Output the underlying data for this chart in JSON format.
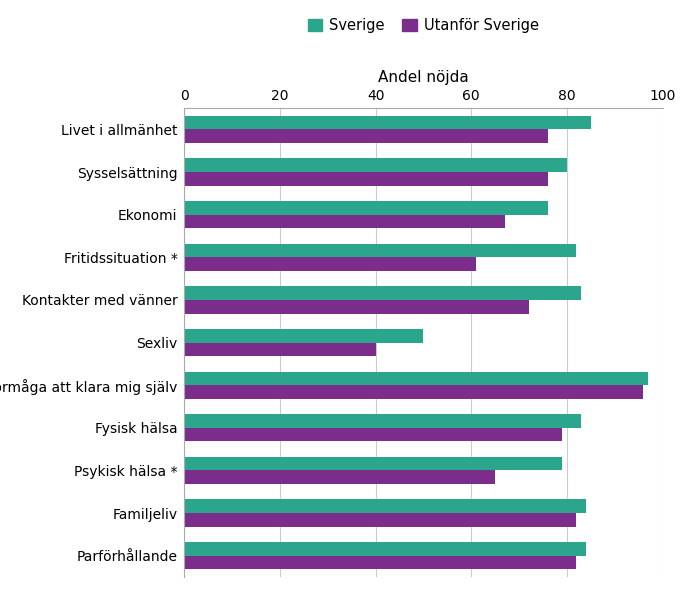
{
  "categories": [
    "Livet i allmänhet",
    "Sysselsättning",
    "Ekonomi",
    "Fritidssituation *",
    "Kontakter med vänner",
    "Sexliv",
    "Förmåga att klara mig själv",
    "Fysisk hälsa",
    "Psykisk hälsa *",
    "Familjeliv",
    "Parförhållande"
  ],
  "sverige": [
    85,
    80,
    76,
    82,
    83,
    50,
    97,
    83,
    79,
    84,
    84
  ],
  "utanfor_sverige": [
    76,
    76,
    67,
    61,
    72,
    40,
    96,
    79,
    65,
    82,
    82
  ],
  "color_sverige": "#2ca58d",
  "color_utanfor": "#7b2d8b",
  "xlabel": "Andel nöjda",
  "xlim": [
    0,
    100
  ],
  "xticks": [
    0,
    20,
    40,
    60,
    80,
    100
  ],
  "legend_labels": [
    "Sverige",
    "Utanför Sverige"
  ],
  "background_color": "#ffffff",
  "bar_height": 0.32,
  "figsize": [
    6.83,
    6.01
  ],
  "dpi": 100
}
